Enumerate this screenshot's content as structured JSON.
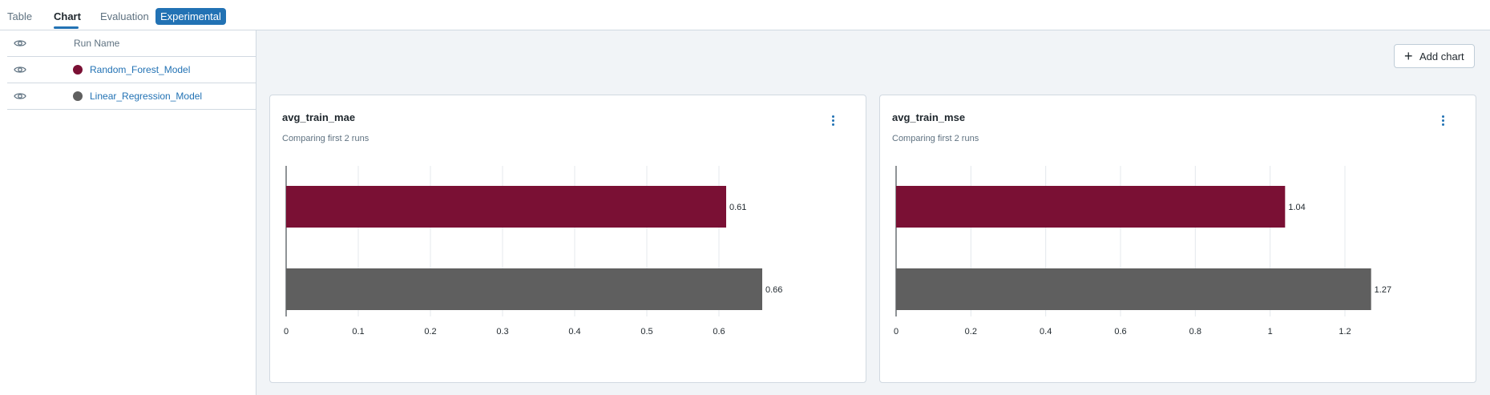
{
  "tabs": [
    {
      "label": "Table"
    },
    {
      "label": "Chart"
    },
    {
      "label": "Evaluation"
    }
  ],
  "experimental_badge": "Experimental",
  "active_tab": "Chart",
  "runs_table": {
    "column_title": "Run Name",
    "rows": [
      {
        "name": "Random_Forest_Model",
        "color": "#7a1034"
      },
      {
        "name": "Linear_Regression_Model",
        "color": "#5f5f5f"
      }
    ]
  },
  "toolbar": {
    "add_chart_label": "Add chart"
  },
  "cards": [
    {
      "title": "avg_train_mae",
      "subtitle": "Comparing first 2 runs"
    },
    {
      "title": "avg_train_mse",
      "subtitle": "Comparing first 2 runs"
    }
  ],
  "chart_data": [
    {
      "type": "bar",
      "orientation": "horizontal",
      "title": "avg_train_mae",
      "subtitle": "Comparing first 2 runs",
      "categories": [
        "Random_Forest_Model",
        "Linear_Regression_Model"
      ],
      "values": [
        0.61,
        0.66
      ],
      "value_labels": [
        "0.61",
        "0.66"
      ],
      "colors": [
        "#7a1034",
        "#5f5f5f"
      ],
      "xlim": [
        0,
        0.7
      ],
      "xticks": [
        0,
        0.1,
        0.2,
        0.3,
        0.4,
        0.5,
        0.6
      ],
      "xtick_labels": [
        "0",
        "0.1",
        "0.2",
        "0.3",
        "0.4",
        "0.5",
        "0.6"
      ],
      "grid": true
    },
    {
      "type": "bar",
      "orientation": "horizontal",
      "title": "avg_train_mse",
      "subtitle": "Comparing first 2 runs",
      "categories": [
        "Random_Forest_Model",
        "Linear_Regression_Model"
      ],
      "values": [
        1.04,
        1.27
      ],
      "value_labels": [
        "1.04",
        "1.27"
      ],
      "colors": [
        "#7a1034",
        "#5f5f5f"
      ],
      "xlim": [
        0,
        1.35
      ],
      "xticks": [
        0,
        0.2,
        0.4,
        0.6,
        0.8,
        1,
        1.2
      ],
      "xtick_labels": [
        "0",
        "0.2",
        "0.4",
        "0.6",
        "0.8",
        "1",
        "1.2"
      ],
      "grid": true
    }
  ]
}
